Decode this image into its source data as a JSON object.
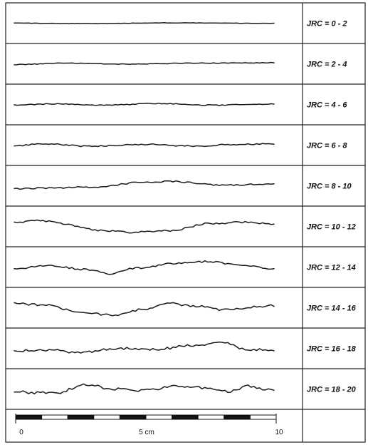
{
  "profiles": [
    {
      "label": "JRC = 0 - 2"
    },
    {
      "label": "JRC = 2 - 4"
    },
    {
      "label": "JRC = 4 - 6"
    },
    {
      "label": "JRC = 6 - 8"
    },
    {
      "label": "JRC = 8 - 10"
    },
    {
      "label": "JRC = 10 - 12"
    },
    {
      "label": "JRC = 12 - 14"
    },
    {
      "label": "JRC = 14 - 16"
    },
    {
      "label": "JRC = 16 - 18"
    },
    {
      "label": "JRC = 18 - 20"
    }
  ],
  "scale_bar": {
    "start_label": "0",
    "mid_label": "5 cm",
    "end_label": "10"
  }
}
